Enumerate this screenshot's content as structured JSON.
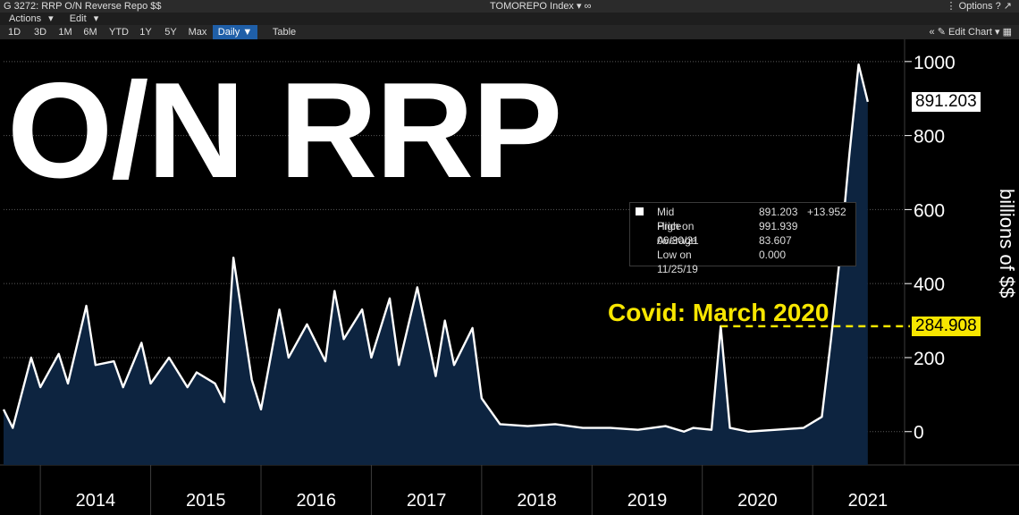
{
  "window": {
    "title": "G 3272: RRP O/N Reverse Repo $$",
    "ticker": "TOMOREPO Index",
    "options_label": "Options"
  },
  "menu": {
    "actions": "Actions",
    "edit": "Edit"
  },
  "toolbar": {
    "ranges": [
      "1D",
      "3D",
      "1M",
      "6M",
      "YTD",
      "1Y",
      "5Y",
      "Max"
    ],
    "period": "Daily",
    "table": "Table",
    "edit_chart": "Edit Chart"
  },
  "overlay_title": "O/N RRP",
  "legend": {
    "rows": [
      {
        "label": "Mid Price",
        "value": "891.203",
        "change": "+13.952"
      },
      {
        "label": "High on 06/30/21",
        "value": "991.939",
        "change": ""
      },
      {
        "label": "Average",
        "value": "83.607",
        "change": ""
      },
      {
        "label": "Low on 11/25/19",
        "value": "0.000",
        "change": ""
      }
    ]
  },
  "annotation": {
    "text": "Covid: March 2020",
    "value_label": "284.908",
    "value": 284.908
  },
  "last_value_label": "891.203",
  "colors": {
    "background": "#000000",
    "line": "#ffffff",
    "fill": "#0d2440",
    "annotation": "#f7e600",
    "grid": "#3c3c3c"
  },
  "chart_data": {
    "type": "area",
    "ylabel": "billions of $$",
    "ylim": [
      -90,
      1060
    ],
    "yticks": [
      0,
      200,
      400,
      600,
      800,
      1000
    ],
    "xticks": [
      "2014",
      "2015",
      "2016",
      "2017",
      "2018",
      "2019",
      "2020",
      "2021"
    ],
    "grid": false,
    "series": [
      {
        "name": "Mid Price",
        "x": [
          "2013-09",
          "2013-10",
          "2013-12",
          "2014-01",
          "2014-03",
          "2014-04",
          "2014-06",
          "2014-07",
          "2014-09",
          "2014-10",
          "2014-12",
          "2015-01",
          "2015-03",
          "2015-05",
          "2015-06",
          "2015-08",
          "2015-09",
          "2015-10",
          "2015-12",
          "2016-01",
          "2016-03",
          "2016-04",
          "2016-06",
          "2016-08",
          "2016-09",
          "2016-10",
          "2016-12",
          "2017-01",
          "2017-03",
          "2017-04",
          "2017-06",
          "2017-08",
          "2017-09",
          "2017-10",
          "2017-12",
          "2018-01",
          "2018-03",
          "2018-06",
          "2018-09",
          "2018-12",
          "2019-03",
          "2019-06",
          "2019-09",
          "2019-11",
          "2019-12",
          "2020-02",
          "2020-03",
          "2020-04",
          "2020-06",
          "2020-09",
          "2020-12",
          "2021-02",
          "2021-03",
          "2021-04",
          "2021-05",
          "2021-06",
          "2021-07"
        ],
        "values": [
          60,
          10,
          200,
          120,
          210,
          130,
          340,
          180,
          190,
          120,
          240,
          130,
          200,
          120,
          160,
          130,
          80,
          470,
          140,
          60,
          330,
          200,
          290,
          190,
          380,
          250,
          330,
          200,
          360,
          180,
          390,
          150,
          300,
          180,
          280,
          90,
          20,
          15,
          20,
          10,
          10,
          5,
          15,
          0,
          10,
          5,
          284.908,
          10,
          0,
          5,
          10,
          40,
          250,
          480,
          750,
          991.939,
          891.203
        ]
      }
    ]
  }
}
